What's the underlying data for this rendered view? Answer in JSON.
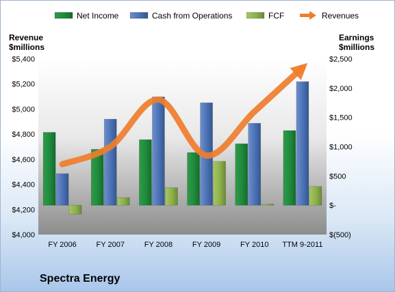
{
  "company": "Spectra Energy",
  "chart_data": {
    "type": "bar",
    "categories": [
      "FY 2006",
      "FY 2007",
      "FY 2008",
      "FY 2009",
      "FY 2010",
      "TTM 9-2011"
    ],
    "left_axis": {
      "title": [
        "Revenue",
        "$millions"
      ],
      "ylim": [
        4000,
        5400
      ],
      "ticks": [
        4000,
        4200,
        4400,
        4600,
        4800,
        5000,
        5200,
        5400
      ],
      "tick_labels": [
        "$4,000",
        "$4,200",
        "$4,400",
        "$4,600",
        "$4,800",
        "$5,000",
        "$5,200",
        "$5,400"
      ]
    },
    "right_axis": {
      "title": [
        "Earnings",
        "$millions"
      ],
      "ylim": [
        -500,
        2500
      ],
      "ticks": [
        -500,
        0,
        500,
        1000,
        1500,
        2000,
        2500
      ],
      "tick_labels": [
        "$(500)",
        "$-",
        "$500",
        "$1,000",
        "$1,500",
        "$2,000",
        "$2,500"
      ]
    },
    "series": [
      {
        "name": "Net Income",
        "type": "bar",
        "axis": "right",
        "color": "#1f8a3c",
        "values": [
          1245,
          955,
          1120,
          900,
          1050,
          1275
        ]
      },
      {
        "name": "Cash from Operations",
        "type": "bar",
        "axis": "right",
        "color": "#4a71b5",
        "values": [
          540,
          1470,
          1850,
          1750,
          1400,
          2110
        ]
      },
      {
        "name": "FCF",
        "type": "bar",
        "axis": "right",
        "color": "#8cb04a",
        "values": [
          -150,
          130,
          300,
          750,
          20,
          320
        ]
      },
      {
        "name": "Revenues",
        "type": "line",
        "axis": "left",
        "color": "#ef7d2c",
        "values": [
          4560,
          4700,
          5075,
          4630,
          4980,
          5330
        ]
      }
    ],
    "legend_position": "top",
    "grid": false
  }
}
